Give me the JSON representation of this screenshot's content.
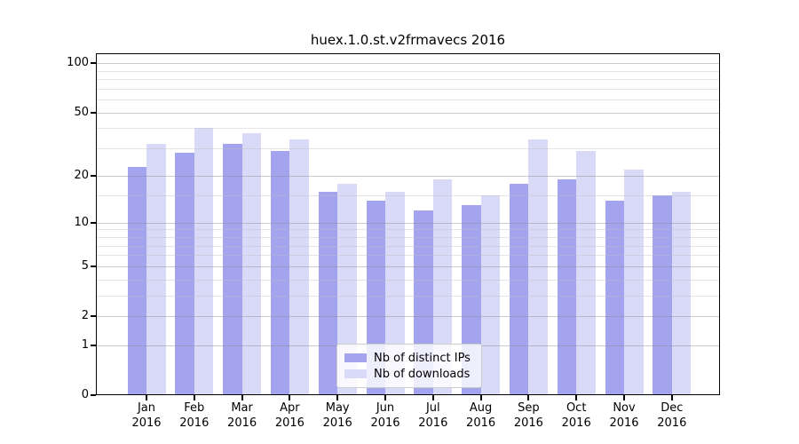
{
  "title": "huex.1.0.st.v2frmavecs 2016",
  "chart_data": {
    "type": "bar",
    "title": "huex.1.0.st.v2frmavecs 2016",
    "categories": [
      "Jan",
      "Feb",
      "Mar",
      "Apr",
      "May",
      "Jun",
      "Jul",
      "Aug",
      "Sep",
      "Oct",
      "Nov",
      "Dec"
    ],
    "year": "2016",
    "series": [
      {
        "name": "Nb of distinct IPs",
        "color": "#a3a3ee",
        "values": [
          23,
          28,
          32,
          29,
          16,
          14,
          12,
          13,
          18,
          19,
          14,
          15
        ]
      },
      {
        "name": "Nb of downloads",
        "color": "#d9d9f8",
        "values": [
          32,
          40,
          37,
          34,
          18,
          16,
          19,
          15,
          34,
          29,
          22,
          16
        ]
      }
    ],
    "yscale": "log1p",
    "y_ticks": [
      100,
      50,
      20,
      10,
      5,
      2,
      1,
      0
    ],
    "y_minor_gridlines": [
      90,
      80,
      70,
      60,
      40,
      30,
      15,
      9,
      8,
      7,
      6,
      4,
      3
    ],
    "ylim": [
      0,
      115
    ],
    "xlabel": "",
    "ylabel": "",
    "grid": true,
    "gridlines_over_bars": true,
    "legend_position": "lower center",
    "colors": {
      "background": "#ffffff",
      "axis": "#000000",
      "major_grid": "#c9c9c9",
      "minor_grid": "#e6e6e6",
      "legend_border": "#cccccc"
    }
  }
}
